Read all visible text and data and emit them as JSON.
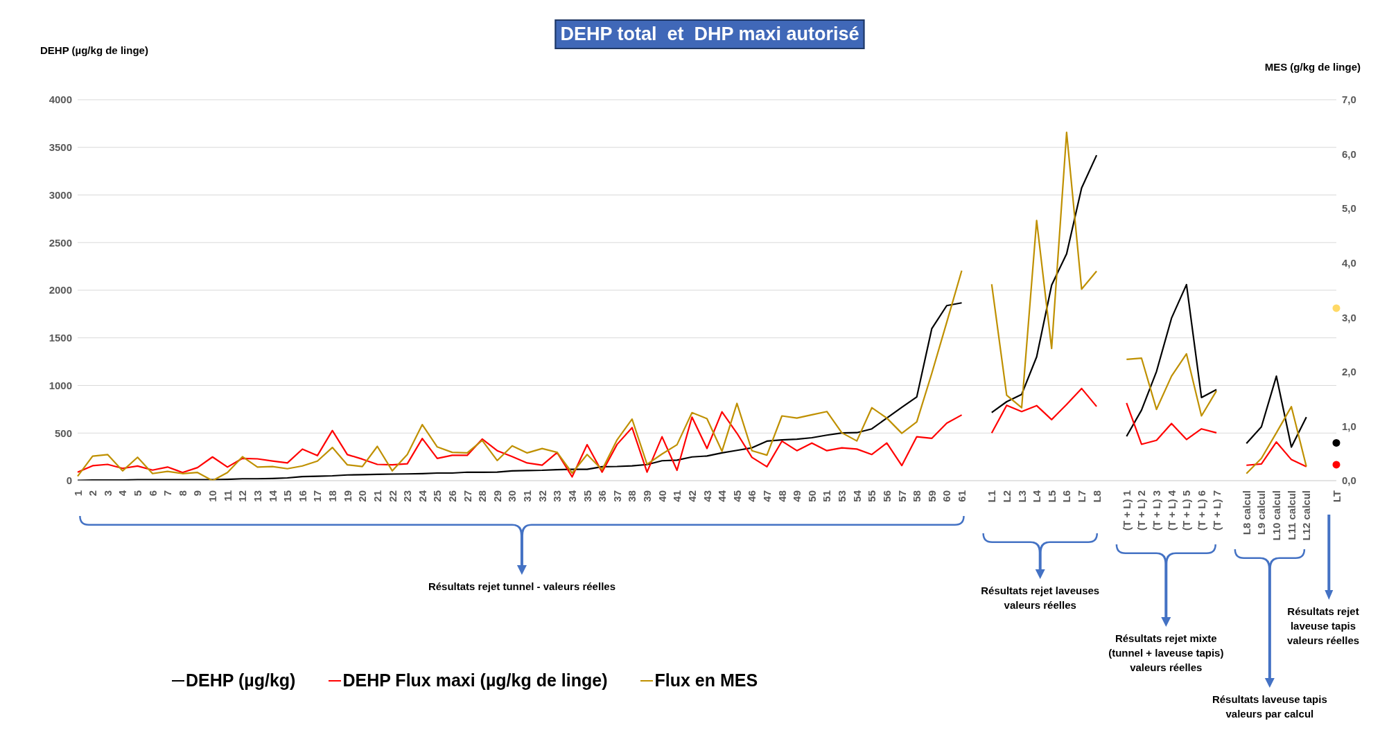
{
  "chart_data": {
    "type": "line",
    "title": "DEHP total  et  DHP maxi autorisé",
    "ylabel": "DEHP (µg/kg de linge)",
    "y2label": "MES (g/kg de linge)",
    "categories": [
      "1",
      "2",
      "3",
      "4",
      "5",
      "6",
      "7",
      "8",
      "9",
      "10",
      "11",
      "12",
      "13",
      "14",
      "15",
      "16",
      "17",
      "18",
      "19",
      "20",
      "21",
      "22",
      "23",
      "24",
      "25",
      "26",
      "27",
      "28",
      "29",
      "30",
      "31",
      "32",
      "33",
      "34",
      "35",
      "36",
      "37",
      "38",
      "39",
      "40",
      "41",
      "42",
      "43",
      "44",
      "45",
      "46",
      "47",
      "48",
      "49",
      "50",
      "51",
      "53",
      "54",
      "55",
      "56",
      "57",
      "58",
      "59",
      "60",
      "61",
      null,
      "L1",
      "L2",
      "L3",
      "L4",
      "L5",
      "L6",
      "L7",
      "L8",
      null,
      "(T + L) 1",
      "(T + L) 2",
      "(T + L) 3",
      "(T + L) 4",
      "(T + L) 5",
      "(T + L) 6",
      "(T + L) 7",
      null,
      "L8 calcul",
      "L9 calcul",
      "L10 calcul",
      "L11 calcul",
      "L12 calcul",
      null,
      "LT"
    ],
    "series": [
      {
        "name": "DEHP (µg/kg)",
        "color": "#000000",
        "values": [
          3,
          6,
          6,
          6,
          11,
          11,
          11,
          11,
          11,
          11,
          14,
          20,
          20,
          23,
          29,
          43,
          46,
          51,
          60,
          63,
          66,
          69,
          71,
          74,
          80,
          80,
          89,
          88,
          90,
          103,
          106,
          109,
          116,
          119,
          119,
          146,
          149,
          156,
          169,
          209,
          216,
          249,
          259,
          292,
          318,
          345,
          415,
          428,
          435,
          451,
          478,
          501,
          504,
          544,
          657,
          770,
          879,
          1595,
          1838,
          1867,
          null,
          715,
          829,
          906,
          1300,
          2053,
          2382,
          3073,
          3417,
          null,
          465,
          741,
          1147,
          1706,
          2059,
          873,
          956,
          null,
          391,
          565,
          1097,
          353,
          668,
          null,
          null
        ]
      },
      {
        "name": "DEHP Flux maxi (µg/kg de linge)",
        "color": "#ff0000",
        "values": [
          89,
          157,
          171,
          129,
          154,
          111,
          143,
          86,
          137,
          249,
          143,
          234,
          229,
          206,
          186,
          331,
          263,
          526,
          274,
          226,
          171,
          166,
          177,
          443,
          234,
          266,
          266,
          437,
          315,
          252,
          186,
          163,
          295,
          40,
          378,
          90,
          381,
          557,
          90,
          461,
          109,
          667,
          338,
          723,
          498,
          245,
          146,
          415,
          315,
          395,
          315,
          345,
          332,
          275,
          395,
          159,
          461,
          444,
          604,
          690,
          null,
          500,
          791,
          726,
          788,
          641,
          800,
          968,
          779,
          null,
          815,
          382,
          424,
          600,
          432,
          544,
          503,
          null,
          162,
          176,
          406,
          221,
          147,
          null,
          null
        ]
      },
      {
        "name": "Flux en MES",
        "color": "#bf9000",
        "axis": "y2",
        "values": [
          0.08,
          0.45,
          0.48,
          0.18,
          0.43,
          0.13,
          0.17,
          0.13,
          0.15,
          0,
          0.15,
          0.44,
          0.25,
          0.26,
          0.22,
          0.27,
          0.36,
          0.61,
          0.29,
          0.26,
          0.63,
          0.18,
          0.48,
          1.03,
          0.62,
          0.52,
          0.51,
          0.74,
          0.37,
          0.64,
          0.51,
          0.59,
          0.52,
          0.14,
          0.48,
          0.2,
          0.75,
          1.13,
          0.3,
          0.49,
          0.66,
          1.25,
          1.14,
          0.54,
          1.42,
          0.55,
          0.47,
          1.19,
          1.15,
          1.21,
          1.27,
          0.88,
          0.73,
          1.34,
          1.15,
          0.87,
          1.08,
          1.97,
          2.91,
          3.86,
          null,
          3.61,
          1.57,
          1.34,
          4.78,
          2.43,
          6.4,
          3.52,
          3.85,
          null,
          2.23,
          2.25,
          1.31,
          1.92,
          2.33,
          1.19,
          1.65,
          null,
          0.13,
          0.41,
          0.88,
          1.36,
          0.26,
          null,
          null
        ]
      },
      {
        "type": "scatter",
        "marker": "circle",
        "color": "#000000",
        "x": [
          "LT"
        ],
        "values": [
          397
        ]
      },
      {
        "type": "scatter",
        "marker": "circle",
        "color": "#ff0000",
        "x": [
          "LT"
        ],
        "values": [
          168
        ]
      },
      {
        "type": "scatter",
        "marker": "circle",
        "color": "#ffd966",
        "axis": "y2",
        "x": [
          "LT"
        ],
        "values": [
          3.17
        ]
      }
    ],
    "ylim": [
      0,
      4000
    ],
    "yticks": [
      0,
      500,
      1000,
      1500,
      2000,
      2500,
      3000,
      3500,
      4000
    ],
    "y2lim": [
      0,
      7
    ],
    "y2ticks": [
      {
        "value": 0,
        "label": "0,0"
      },
      {
        "value": 1,
        "label": "1,0"
      },
      {
        "value": 2,
        "label": "2,0"
      },
      {
        "value": 3,
        "label": "3,0"
      },
      {
        "value": 4,
        "label": "4,0"
      },
      {
        "value": 5,
        "label": "5,0"
      },
      {
        "value": 6,
        "label": "6,0"
      },
      {
        "value": 7,
        "label": "7,0"
      }
    ],
    "grid": "y",
    "legend": "bottom left",
    "marker": "none",
    "annotations": [
      "Résultats rejet tunnel - valeurs réelles",
      "Résultats rejet laveuses valeurs réelles",
      "Résultats rejet mixte (tunnel + laveuse tapis) valeurs réelles",
      "Résultats laveuse tapis valeurs par calcul",
      "Résultats rejet laveuse tapis valeurs réelles"
    ]
  }
}
